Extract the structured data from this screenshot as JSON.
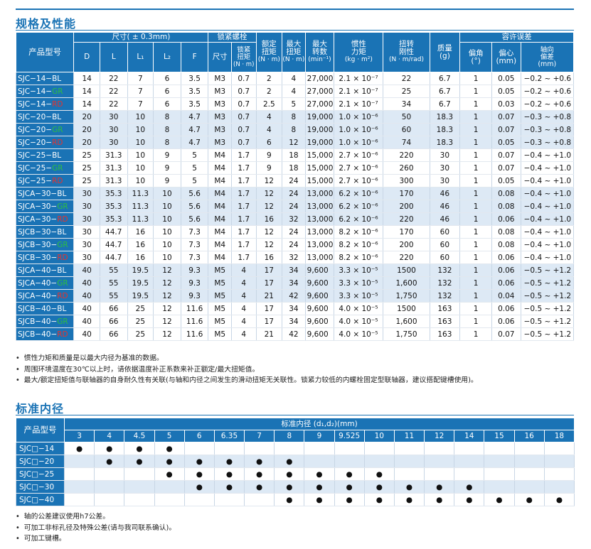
{
  "section1_title": "规格及性能",
  "section2_title": "标准内径",
  "spec": {
    "h_model": "产品型号",
    "h_dim": "尺寸( ± 0.3mm)",
    "h_screw": "锁紧螺栓",
    "h_rated": "额定扭矩",
    "h_rated2": "(N · m)",
    "h_max_torque": "最大扭矩",
    "h_max_torque2": "(N · m)",
    "h_max_speed": "最大转数",
    "h_max_speed2": "(min⁻¹)",
    "h_inertia": "惯性力矩",
    "h_inertia2": "(kg · m²)",
    "h_stiff": "扭转刚性",
    "h_stiff2": "(N · m/rad)",
    "h_mass": "质量",
    "h_mass2": "(g)",
    "h_tol": "容许误差",
    "h_D": "D",
    "h_L": "L",
    "h_L1": "L₁",
    "h_L2": "L₂",
    "h_F": "F",
    "h_size": "尺寸",
    "h_tight": "锁紧扭矩",
    "h_tight2": "(N · m)",
    "h_angle": "偏角",
    "h_angle2": "(°)",
    "h_center": "偏心",
    "h_center2": "(mm)",
    "h_axial": "轴向偏差",
    "h_axial2": "(mm)",
    "rows": [
      {
        "p": "SJC−14−",
        "s": "BL",
        "c": "bl",
        "D": "14",
        "L": "22",
        "L1": "7",
        "L2": "6",
        "F": "3.5",
        "size": "M3",
        "tq": "0.7",
        "rated": "2",
        "max": "4",
        "speed": "27,000",
        "inertia": "2.1 × 10⁻⁷",
        "stiff": "22",
        "mass": "6.7",
        "ang": "1",
        "ecc": "0.05",
        "axial": "−0.2 ~ +0.6"
      },
      {
        "p": "SJC−14−",
        "s": "GR",
        "c": "gr",
        "D": "14",
        "L": "22",
        "L1": "7",
        "L2": "6",
        "F": "3.5",
        "size": "M3",
        "tq": "0.7",
        "rated": "2",
        "max": "4",
        "speed": "27,000",
        "inertia": "2.1 × 10⁻⁷",
        "stiff": "25",
        "mass": "6.7",
        "ang": "1",
        "ecc": "0.05",
        "axial": "−0.2 ~ +0.6"
      },
      {
        "p": "SJC−14−",
        "s": "RD",
        "c": "rd",
        "D": "14",
        "L": "22",
        "L1": "7",
        "L2": "6",
        "F": "3.5",
        "size": "M3",
        "tq": "0.7",
        "rated": "2.5",
        "max": "5",
        "speed": "27,000",
        "inertia": "2.1 × 10⁻⁷",
        "stiff": "34",
        "mass": "6.7",
        "ang": "1",
        "ecc": "0.03",
        "axial": "−0.2 ~ +0.6"
      },
      {
        "p": "SJC−20−",
        "s": "BL",
        "c": "bl",
        "D": "20",
        "L": "30",
        "L1": "10",
        "L2": "8",
        "F": "4.7",
        "size": "M3",
        "tq": "0.7",
        "rated": "4",
        "max": "8",
        "speed": "19,000",
        "inertia": "1.0 × 10⁻⁶",
        "stiff": "50",
        "mass": "18.3",
        "ang": "1",
        "ecc": "0.07",
        "axial": "−0.3 ~ +0.8"
      },
      {
        "p": "SJC−20−",
        "s": "GR",
        "c": "gr",
        "D": "20",
        "L": "30",
        "L1": "10",
        "L2": "8",
        "F": "4.7",
        "size": "M3",
        "tq": "0.7",
        "rated": "4",
        "max": "8",
        "speed": "19,000",
        "inertia": "1.0 × 10⁻⁶",
        "stiff": "60",
        "mass": "18.3",
        "ang": "1",
        "ecc": "0.07",
        "axial": "−0.3 ~ +0.8"
      },
      {
        "p": "SJC−20−",
        "s": "RD",
        "c": "rd",
        "D": "20",
        "L": "30",
        "L1": "10",
        "L2": "8",
        "F": "4.7",
        "size": "M3",
        "tq": "0.7",
        "rated": "6",
        "max": "12",
        "speed": "19,000",
        "inertia": "1.0 × 10⁻⁶",
        "stiff": "74",
        "mass": "18.3",
        "ang": "1",
        "ecc": "0.05",
        "axial": "−0.3 ~ +0.8"
      },
      {
        "p": "SJC−25−",
        "s": "BL",
        "c": "bl",
        "D": "25",
        "L": "31.3",
        "L1": "10",
        "L2": "9",
        "F": "5",
        "size": "M4",
        "tq": "1.7",
        "rated": "9",
        "max": "18",
        "speed": "15,000",
        "inertia": "2.7 × 10⁻⁶",
        "stiff": "220",
        "mass": "30",
        "ang": "1",
        "ecc": "0.07",
        "axial": "−0.4 ~ +1.0"
      },
      {
        "p": "SJC−25−",
        "s": "GR",
        "c": "gr",
        "D": "25",
        "L": "31.3",
        "L1": "10",
        "L2": "9",
        "F": "5",
        "size": "M4",
        "tq": "1.7",
        "rated": "9",
        "max": "18",
        "speed": "15,000",
        "inertia": "2.7 × 10⁻⁶",
        "stiff": "260",
        "mass": "30",
        "ang": "1",
        "ecc": "0.07",
        "axial": "−0.4 ~ +1.0"
      },
      {
        "p": "SJC−25−",
        "s": "RD",
        "c": "rd",
        "D": "25",
        "L": "31.3",
        "L1": "10",
        "L2": "9",
        "F": "5",
        "size": "M4",
        "tq": "1.7",
        "rated": "12",
        "max": "24",
        "speed": "15,000",
        "inertia": "2.7 × 10⁻⁶",
        "stiff": "300",
        "mass": "30",
        "ang": "1",
        "ecc": "0.05",
        "axial": "−0.4 ~ +1.0"
      },
      {
        "p": "SJCA−30−",
        "s": "BL",
        "c": "bl",
        "D": "30",
        "L": "35.3",
        "L1": "11.3",
        "L2": "10",
        "F": "5.6",
        "size": "M4",
        "tq": "1.7",
        "rated": "12",
        "max": "24",
        "speed": "13,000",
        "inertia": "6.2 × 10⁻⁶",
        "stiff": "170",
        "mass": "46",
        "ang": "1",
        "ecc": "0.08",
        "axial": "−0.4 ~ +1.0"
      },
      {
        "p": "SJCA−30−",
        "s": "GR",
        "c": "gr",
        "D": "30",
        "L": "35.3",
        "L1": "11.3",
        "L2": "10",
        "F": "5.6",
        "size": "M4",
        "tq": "1.7",
        "rated": "12",
        "max": "24",
        "speed": "13,000",
        "inertia": "6.2 × 10⁻⁶",
        "stiff": "200",
        "mass": "46",
        "ang": "1",
        "ecc": "0.08",
        "axial": "−0.4 ~ +1.0"
      },
      {
        "p": "SJCA−30−",
        "s": "RD",
        "c": "rd",
        "D": "30",
        "L": "35.3",
        "L1": "11.3",
        "L2": "10",
        "F": "5.6",
        "size": "M4",
        "tq": "1.7",
        "rated": "16",
        "max": "32",
        "speed": "13,000",
        "inertia": "6.2 × 10⁻⁶",
        "stiff": "220",
        "mass": "46",
        "ang": "1",
        "ecc": "0.06",
        "axial": "−0.4 ~ +1.0"
      },
      {
        "p": "SJCB−30−",
        "s": "BL",
        "c": "bl",
        "D": "30",
        "L": "44.7",
        "L1": "16",
        "L2": "10",
        "F": "7.3",
        "size": "M4",
        "tq": "1.7",
        "rated": "12",
        "max": "24",
        "speed": "13,000",
        "inertia": "8.2 × 10⁻⁶",
        "stiff": "170",
        "mass": "60",
        "ang": "1",
        "ecc": "0.08",
        "axial": "−0.4 ~ +1.0"
      },
      {
        "p": "SJCB−30−",
        "s": "GR",
        "c": "gr",
        "D": "30",
        "L": "44.7",
        "L1": "16",
        "L2": "10",
        "F": "7.3",
        "size": "M4",
        "tq": "1.7",
        "rated": "12",
        "max": "24",
        "speed": "13,000",
        "inertia": "8.2 × 10⁻⁶",
        "stiff": "200",
        "mass": "60",
        "ang": "1",
        "ecc": "0.08",
        "axial": "−0.4 ~ +1.0"
      },
      {
        "p": "SJCB−30−",
        "s": "RD",
        "c": "rd",
        "D": "30",
        "L": "44.7",
        "L1": "16",
        "L2": "10",
        "F": "7.3",
        "size": "M4",
        "tq": "1.7",
        "rated": "16",
        "max": "32",
        "speed": "13,000",
        "inertia": "8.2 × 10⁻⁶",
        "stiff": "220",
        "mass": "60",
        "ang": "1",
        "ecc": "0.06",
        "axial": "−0.4 ~ +1.0"
      },
      {
        "p": "SJCA−40−",
        "s": "BL",
        "c": "bl",
        "D": "40",
        "L": "55",
        "L1": "19.5",
        "L2": "12",
        "F": "9.3",
        "size": "M5",
        "tq": "4",
        "rated": "17",
        "max": "34",
        "speed": "9,600",
        "inertia": "3.3 × 10⁻⁵",
        "stiff": "1500",
        "mass": "132",
        "ang": "1",
        "ecc": "0.06",
        "axial": "−0.5 ~ +1.2"
      },
      {
        "p": "SJCA−40−",
        "s": "GR",
        "c": "gr",
        "D": "40",
        "L": "55",
        "L1": "19.5",
        "L2": "12",
        "F": "9.3",
        "size": "M5",
        "tq": "4",
        "rated": "17",
        "max": "34",
        "speed": "9,600",
        "inertia": "3.3 × 10⁻⁵",
        "stiff": "1,600",
        "mass": "132",
        "ang": "1",
        "ecc": "0.06",
        "axial": "−0.5 ~ +1.2"
      },
      {
        "p": "SJCA−40−",
        "s": "RD",
        "c": "rd",
        "D": "40",
        "L": "55",
        "L1": "19.5",
        "L2": "12",
        "F": "9.3",
        "size": "M5",
        "tq": "4",
        "rated": "21",
        "max": "42",
        "speed": "9,600",
        "inertia": "3.3 × 10⁻⁵",
        "stiff": "1,750",
        "mass": "132",
        "ang": "1",
        "ecc": "0.04",
        "axial": "−0.5 ~ +1.2"
      },
      {
        "p": "SJCB−40−",
        "s": "BL",
        "c": "bl",
        "D": "40",
        "L": "66",
        "L1": "25",
        "L2": "12",
        "F": "11.6",
        "size": "M5",
        "tq": "4",
        "rated": "17",
        "max": "34",
        "speed": "9,600",
        "inertia": "4.0 × 10⁻⁵",
        "stiff": "1500",
        "mass": "163",
        "ang": "1",
        "ecc": "0.06",
        "axial": "−0.5 ~ +1.2"
      },
      {
        "p": "SJCB−40−",
        "s": "GR",
        "c": "gr",
        "D": "40",
        "L": "66",
        "L1": "25",
        "L2": "12",
        "F": "11.6",
        "size": "M5",
        "tq": "4",
        "rated": "17",
        "max": "34",
        "speed": "9,600",
        "inertia": "4.0 × 10⁻⁵",
        "stiff": "1,600",
        "mass": "163",
        "ang": "1",
        "ecc": "0.06",
        "axial": "−0.5 ~ +1.2"
      },
      {
        "p": "SJCB−40−",
        "s": "RD",
        "c": "rd",
        "D": "40",
        "L": "66",
        "L1": "25",
        "L2": "12",
        "F": "11.6",
        "size": "M5",
        "tq": "4",
        "rated": "21",
        "max": "42",
        "speed": "9,600",
        "inertia": "4.0 × 10⁻⁵",
        "stiff": "1,750",
        "mass": "163",
        "ang": "1",
        "ecc": "0.07",
        "axial": "−0.5 ~ +1.2"
      }
    ]
  },
  "notes1": [
    "惯性力矩和质量是以最大内径为基准的数据。",
    "周围环境温度在30℃以上时，请依据温度补正系数来补正额定/最大扭矩值。",
    "最大/额定扭矩值与联轴器的自身耐久性有关联(与轴和内径之间发生的滑动扭矩无关联性。锁紧力较低的内螺栓固定型联轴器，建议搭配键槽使用)。"
  ],
  "bore": {
    "h_model": "产品型号",
    "h_title": "标准内径 (d₁,d₂)(mm)",
    "sizes": [
      "3",
      "4",
      "4.5",
      "5",
      "6",
      "6.35",
      "7",
      "8",
      "9",
      "9.525",
      "10",
      "11",
      "12",
      "14",
      "15",
      "16",
      "18"
    ],
    "rows": [
      {
        "model": "SJC□−14",
        "avail": [
          1,
          1,
          1,
          1,
          0,
          0,
          0,
          0,
          0,
          0,
          0,
          0,
          0,
          0,
          0,
          0,
          0
        ]
      },
      {
        "model": "SJC□−20",
        "avail": [
          0,
          1,
          1,
          1,
          1,
          1,
          1,
          1,
          0,
          0,
          0,
          0,
          0,
          0,
          0,
          0,
          0
        ]
      },
      {
        "model": "SJC□−25",
        "avail": [
          0,
          0,
          0,
          1,
          1,
          1,
          1,
          1,
          1,
          1,
          1,
          0,
          0,
          0,
          0,
          0,
          0
        ]
      },
      {
        "model": "SJC□−30",
        "avail": [
          0,
          0,
          0,
          0,
          1,
          1,
          1,
          1,
          1,
          1,
          1,
          1,
          1,
          1,
          0,
          0,
          0
        ]
      },
      {
        "model": "SJC□−40",
        "avail": [
          0,
          0,
          0,
          0,
          0,
          0,
          0,
          1,
          1,
          1,
          1,
          1,
          1,
          1,
          1,
          1,
          1
        ]
      }
    ],
    "dot": "●"
  },
  "notes2": [
    "轴的公差建议使用h7公差。",
    "可加工非标孔径及特殊公差(请与我司联系确认)。",
    "可加工键槽。"
  ],
  "colors": {
    "brand": "#1a73b5",
    "shade": "#dde9f5",
    "green": "#2fbf3f",
    "red": "#e8332d"
  }
}
